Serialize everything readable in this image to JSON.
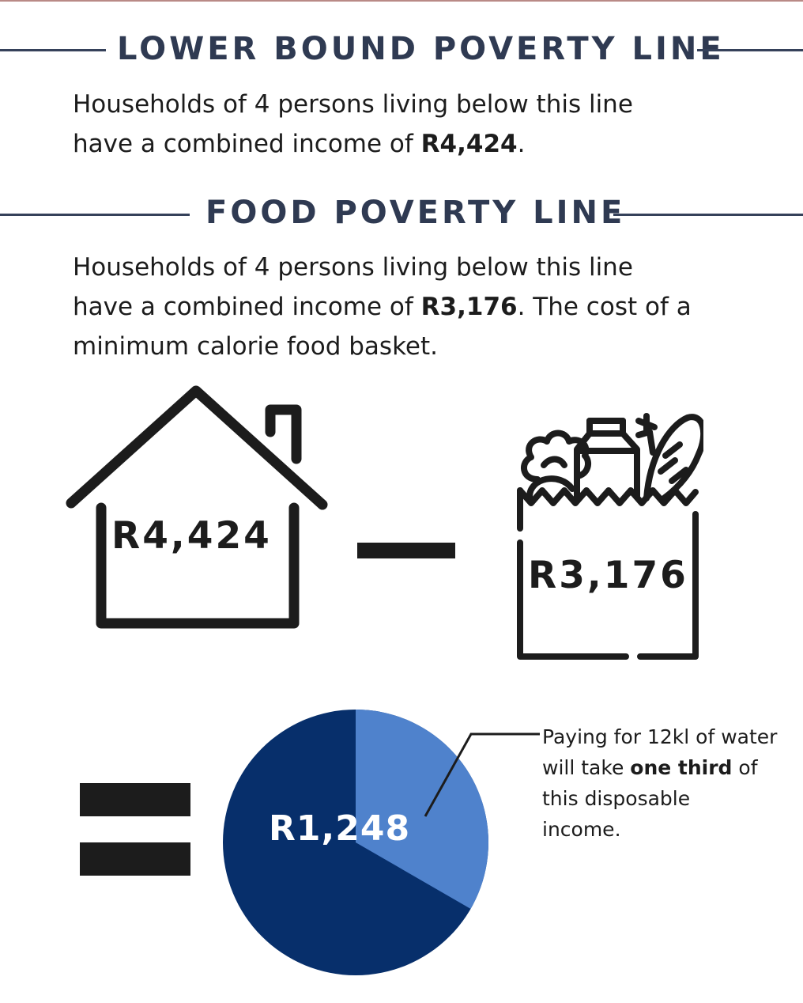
{
  "sections": {
    "lower_bound": {
      "heading": "LOWER BOUND POVERTY LINE",
      "line1": "Households of 4 persons living below this line",
      "line2_prefix": "have a combined income of ",
      "line2_amount": "R4,424",
      "line2_suffix": "."
    },
    "food": {
      "heading": "FOOD POVERTY LINE",
      "line1": "Households of 4 persons living below this line",
      "line2_prefix": "have a combined income of ",
      "line2_amount": "R3,176",
      "line2_suffix": ". The cost of a",
      "line3": "minimum calorie food basket."
    }
  },
  "equation": {
    "house_amount": "R4,424",
    "basket_amount": "R3,176",
    "result_amount": "R1,248"
  },
  "pie": {
    "water_share": 0.3333,
    "colors": {
      "main": "#072f6b",
      "water": "#4f82cc"
    }
  },
  "callout": {
    "line1": "Paying for 12kl of water",
    "line2_prefix": "will take ",
    "line2_bold": "one third",
    "line2_suffix": " of",
    "line3": "this disposable",
    "line4": "income."
  },
  "icons": {
    "house": "house-icon",
    "basket": "grocery-bag-icon",
    "minus": "minus-icon",
    "equals": "equals-icon"
  },
  "colors": {
    "heading": "#2f3a52",
    "text": "#1c1c1c"
  }
}
